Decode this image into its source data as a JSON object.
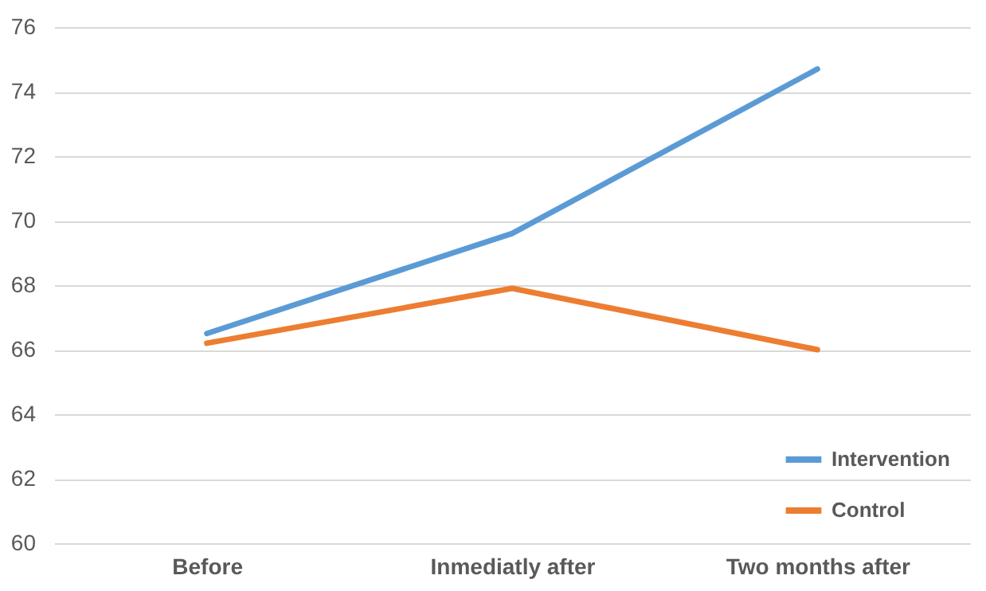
{
  "chart_data": {
    "type": "line",
    "categories": [
      "Before",
      "Inmediatly after",
      "Two months after"
    ],
    "series": [
      {
        "name": "Intervention",
        "color": "#5b9bd5",
        "values": [
          66.5,
          69.6,
          74.7
        ]
      },
      {
        "name": "Control",
        "color": "#ed7d31",
        "values": [
          66.2,
          67.9,
          66.0
        ]
      }
    ],
    "ylim": [
      60,
      76
    ],
    "yticks": [
      60,
      62,
      64,
      66,
      68,
      70,
      72,
      74,
      76
    ],
    "grid": "y",
    "legend": "bottom right",
    "marker": "none"
  }
}
